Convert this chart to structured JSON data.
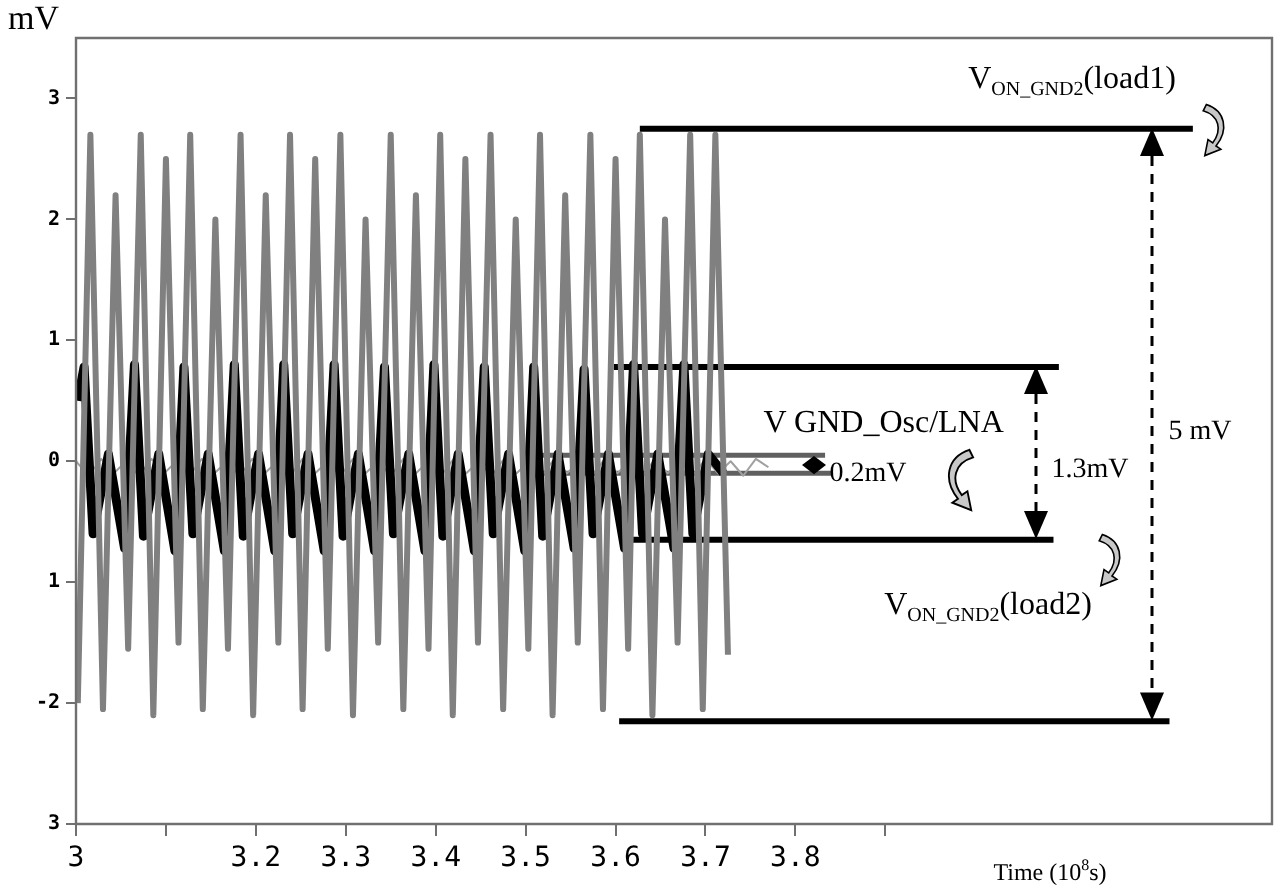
{
  "chart_data": {
    "type": "line",
    "xlabel": "Time (10$^{8}$s)",
    "ylabel": "mV",
    "xlim": [
      3.0,
      4.33
    ],
    "ylim": [
      -3,
      3.5
    ],
    "xticks": [
      3,
      {
        "value": 3.1,
        "label": null
      },
      3.2,
      3.3,
      3.4,
      3.5,
      3.6,
      3.7,
      3.8,
      {
        "value": 3.9,
        "label": null
      }
    ],
    "yticks": [
      {
        "value": -3,
        "label": "3"
      },
      -2,
      {
        "value": -1,
        "label": "1"
      },
      0,
      1,
      2,
      3
    ],
    "grid": false,
    "legend": false,
    "marker": "none",
    "line_style": "solid",
    "series": [
      {
        "color": "#808080",
        "x": [
          3.002,
          3.016,
          3.03,
          3.044,
          3.058,
          3.072,
          3.086,
          3.1,
          3.114,
          3.127,
          3.141,
          3.155,
          3.169,
          3.183,
          3.197,
          3.211,
          3.225,
          3.238,
          3.252,
          3.266,
          3.28,
          3.294,
          3.308,
          3.322,
          3.336,
          3.35,
          3.364,
          3.378,
          3.392,
          3.405,
          3.419,
          3.433,
          3.447,
          3.461,
          3.475,
          3.489,
          3.503,
          3.516,
          3.53,
          3.544,
          3.558,
          3.572,
          3.586,
          3.6,
          3.614,
          3.627,
          3.641,
          3.655,
          3.669,
          3.683,
          3.697,
          3.711,
          3.725
        ],
        "values": [
          -2.0,
          2.7,
          -2.05,
          2.2,
          -1.55,
          2.7,
          -2.1,
          2.5,
          -1.5,
          2.7,
          -2.05,
          2.0,
          -1.55,
          2.7,
          -2.1,
          2.2,
          -1.5,
          2.7,
          -2.05,
          2.5,
          -1.55,
          2.7,
          -2.1,
          2.0,
          -1.5,
          2.7,
          -2.05,
          2.2,
          -1.55,
          2.7,
          -2.1,
          2.5,
          -1.5,
          2.7,
          -2.05,
          2.0,
          -1.55,
          2.7,
          -2.1,
          2.2,
          -1.5,
          2.7,
          -2.05,
          2.5,
          -1.55,
          2.7,
          -2.1,
          2.0,
          -1.5,
          2.7,
          -2.05,
          2.7,
          -1.6
        ]
      },
      {
        "color": "#000000",
        "x": [
          3.002,
          3.009,
          3.019,
          3.036,
          3.054,
          3.065,
          3.075,
          3.092,
          3.11,
          3.12,
          3.13,
          3.147,
          3.165,
          3.176,
          3.186,
          3.203,
          3.221,
          3.231,
          3.241,
          3.258,
          3.276,
          3.287,
          3.297,
          3.314,
          3.332,
          3.343,
          3.353,
          3.37,
          3.388,
          3.398,
          3.408,
          3.425,
          3.443,
          3.454,
          3.464,
          3.481,
          3.499,
          3.509,
          3.519,
          3.536,
          3.554,
          3.565,
          3.575,
          3.592,
          3.61,
          3.62,
          3.63,
          3.647,
          3.665,
          3.676,
          3.686,
          3.703,
          3.72
        ],
        "values": [
          0.5,
          0.78,
          -0.6,
          0.06,
          -0.72,
          0.8,
          -0.62,
          0.06,
          -0.74,
          0.78,
          -0.6,
          0.06,
          -0.74,
          0.8,
          -0.62,
          0.06,
          -0.74,
          0.8,
          -0.6,
          0.06,
          -0.74,
          0.8,
          -0.62,
          0.06,
          -0.74,
          0.78,
          -0.6,
          0.06,
          -0.74,
          0.8,
          -0.62,
          0.06,
          -0.74,
          0.78,
          -0.6,
          0.06,
          -0.74,
          0.78,
          -0.62,
          0.06,
          -0.72,
          0.76,
          -0.6,
          0.06,
          -0.72,
          0.8,
          -0.6,
          0.06,
          -0.72,
          0.8,
          -0.6,
          0.06,
          -0.1
        ]
      },
      {
        "color": "#a0a0a0",
        "x": [
          3.0,
          3.014,
          3.028,
          3.042,
          3.056,
          3.07,
          3.084,
          3.098,
          3.112,
          3.126,
          3.14,
          3.154,
          3.168,
          3.182,
          3.196,
          3.21,
          3.224,
          3.238,
          3.252,
          3.266,
          3.28,
          3.294,
          3.308,
          3.322,
          3.336,
          3.35,
          3.364,
          3.378,
          3.392,
          3.406,
          3.42,
          3.434,
          3.448,
          3.462,
          3.476,
          3.49,
          3.504,
          3.518,
          3.532,
          3.546,
          3.56,
          3.574,
          3.588,
          3.602,
          3.616,
          3.63,
          3.644,
          3.658,
          3.672,
          3.686,
          3.7,
          3.714,
          3.728,
          3.742,
          3.756,
          3.77
        ],
        "values": [
          0.0,
          -0.12,
          0.02,
          -0.1,
          0.0,
          -0.12,
          0.02,
          -0.1,
          0.0,
          -0.12,
          0.02,
          -0.1,
          0.0,
          -0.12,
          0.02,
          -0.1,
          0.0,
          -0.12,
          0.02,
          -0.1,
          0.0,
          -0.12,
          0.02,
          -0.1,
          0.0,
          -0.12,
          0.02,
          -0.1,
          0.0,
          -0.12,
          0.02,
          -0.1,
          0.0,
          -0.12,
          0.02,
          -0.1,
          0.0,
          -0.12,
          0.02,
          -0.1,
          0.0,
          -0.12,
          0.02,
          -0.1,
          0.0,
          -0.12,
          0.02,
          -0.1,
          0.0,
          -0.12,
          0.02,
          -0.1,
          0.0,
          -0.12,
          0.02,
          -0.05
        ]
      },
      {
        "color": "#000000",
        "x": [
          3.627,
          4.242
        ],
        "values": [
          2.75,
          2.75
        ]
      },
      {
        "color": "#000000",
        "x": [
          3.604,
          4.216
        ],
        "values": [
          -2.15,
          -2.15
        ]
      },
      {
        "color": "#000000",
        "x": [
          3.598,
          4.093
        ],
        "values": [
          0.78,
          0.78
        ]
      },
      {
        "color": "#000000",
        "x": [
          3.609,
          4.087
        ],
        "values": [
          -0.65,
          -0.65
        ]
      },
      {
        "color": "#606060",
        "x": [
          3.511,
          3.833
        ],
        "values": [
          0.05,
          0.05
        ]
      },
      {
        "color": "#606060",
        "x": [
          3.511,
          3.84
        ],
        "values": [
          -0.1,
          -0.1
        ]
      }
    ],
    "annotations": [
      "V$_{ON_GND2}$(load1)",
      "V$_{ON_GND2}$(load2)",
      "V GND_Osc/LNA",
      "5 mV",
      "1.3mV",
      "0.2mV"
    ]
  }
}
